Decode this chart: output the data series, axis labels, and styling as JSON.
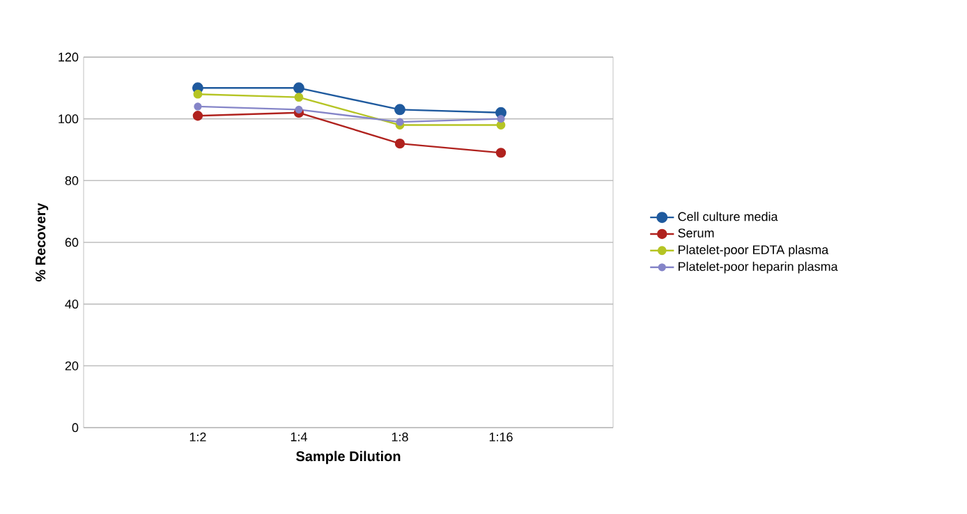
{
  "chart_data": {
    "type": "line",
    "xlabel": "Sample Dilution",
    "ylabel": "% Recovery",
    "categories": [
      "1:2",
      "1:4",
      "1:8",
      "1:16"
    ],
    "series": [
      {
        "name": "Cell culture media",
        "color": "#1f5a9e",
        "values": [
          110,
          110,
          103,
          102
        ]
      },
      {
        "name": "Serum",
        "color": "#b0221e",
        "values": [
          101,
          102,
          92,
          89
        ]
      },
      {
        "name": "Platelet-poor EDTA plasma",
        "color": "#b5c424",
        "values": [
          108,
          107,
          98,
          98
        ]
      },
      {
        "name": "Platelet-poor heparin plasma",
        "color": "#8585c8",
        "values": [
          104,
          103,
          99,
          100
        ]
      }
    ],
    "ylim": [
      0,
      120
    ],
    "yticks": [
      0,
      20,
      40,
      60,
      80,
      100,
      120
    ],
    "grid": "y",
    "legend": "right",
    "marker": "circle",
    "line_style": "solid"
  }
}
